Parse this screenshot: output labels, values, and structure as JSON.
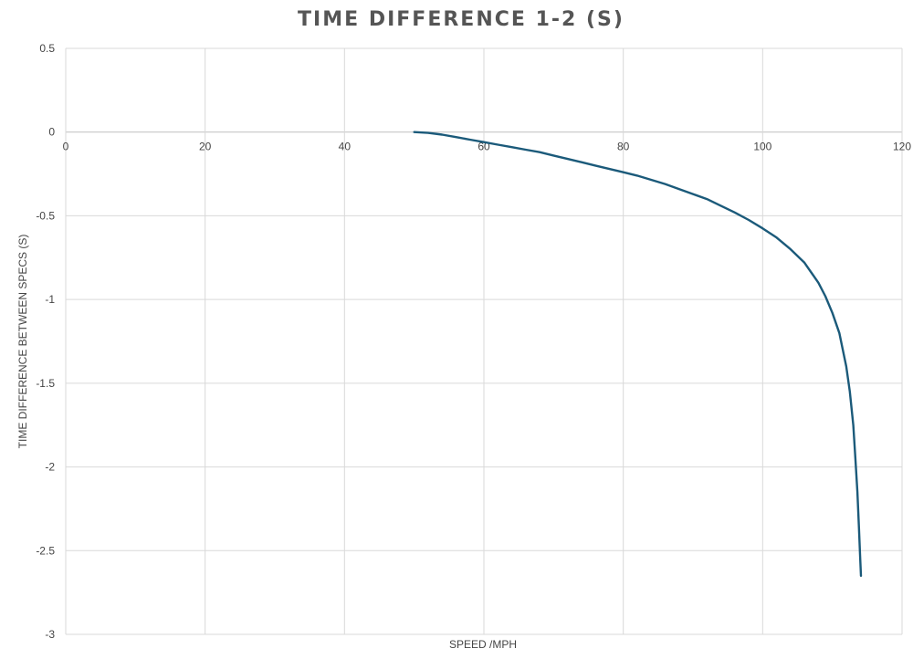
{
  "chart_data": {
    "type": "line",
    "title": "TIME DIFFERENCE 1-2 (S)",
    "xlabel": "SPEED /MPH",
    "ylabel": "TIME DIFFERENCE BETWEEN SPECS (S)",
    "xlim": [
      0,
      120
    ],
    "ylim": [
      -3,
      0.5
    ],
    "x_ticks": [
      0,
      20,
      40,
      60,
      80,
      100,
      120
    ],
    "y_ticks": [
      0.5,
      0,
      -0.5,
      -1,
      -1.5,
      -2,
      -2.5,
      -3
    ],
    "x_tick_labels": [
      "0",
      "20",
      "40",
      "60",
      "80",
      "100",
      "120"
    ],
    "y_tick_labels": [
      "0.5",
      "0",
      "-0.5",
      "-1",
      "-1.5",
      "-2",
      "-2.5",
      "-3"
    ],
    "grid": true,
    "legend": "none",
    "series": [
      {
        "color": "#1b5a7a",
        "x": [
          50,
          52,
          54,
          56,
          58,
          60,
          62,
          64,
          66,
          68,
          70,
          72,
          74,
          76,
          78,
          80,
          82,
          84,
          86,
          88,
          90,
          92,
          94,
          96,
          98,
          100,
          102,
          104,
          106,
          108,
          109,
          110,
          111,
          112,
          112.5,
          113,
          113.3,
          113.6,
          113.8,
          114,
          114.1
        ],
        "y": [
          0,
          -0.005,
          -0.015,
          -0.03,
          -0.045,
          -0.06,
          -0.075,
          -0.09,
          -0.105,
          -0.12,
          -0.14,
          -0.16,
          -0.18,
          -0.2,
          -0.22,
          -0.24,
          -0.26,
          -0.285,
          -0.31,
          -0.34,
          -0.37,
          -0.4,
          -0.44,
          -0.48,
          -0.525,
          -0.575,
          -0.63,
          -0.7,
          -0.78,
          -0.9,
          -0.98,
          -1.08,
          -1.2,
          -1.4,
          -1.55,
          -1.75,
          -1.95,
          -2.15,
          -2.35,
          -2.55,
          -2.65
        ]
      }
    ]
  }
}
